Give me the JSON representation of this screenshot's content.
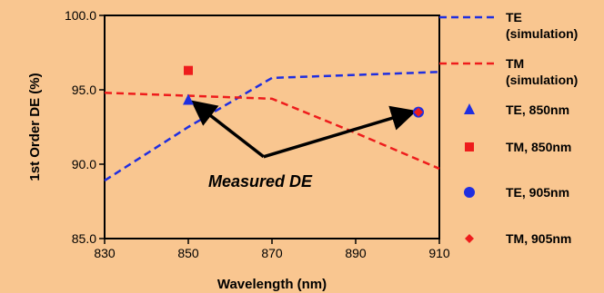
{
  "chart_data": {
    "type": "line",
    "xlabel": "Wavelength (nm)",
    "ylabel": "1st Order DE (%)",
    "xlim": [
      830,
      910
    ],
    "ylim": [
      85,
      100
    ],
    "x_ticks": [
      "830",
      "850",
      "870",
      "890",
      "910"
    ],
    "y_ticks": [
      "85.0",
      "90.0",
      "95.0",
      "100.0"
    ],
    "grid": false,
    "legend_position": "right",
    "series": [
      {
        "name": "TE (simulation)",
        "legend_lines": [
          "TE",
          "(simulation)"
        ],
        "kind": "line",
        "style": "dashed",
        "color": "#1f2ee0",
        "x": [
          830,
          850,
          870,
          890,
          910
        ],
        "y": [
          88.9,
          92.5,
          95.8,
          96.0,
          96.2
        ]
      },
      {
        "name": "TM (simulation)",
        "legend_lines": [
          "TM",
          "(simulation)"
        ],
        "kind": "line",
        "style": "dashed",
        "color": "#ee1c1c",
        "x": [
          830,
          850,
          870,
          890,
          910
        ],
        "y": [
          94.8,
          94.6,
          94.4,
          92.1,
          89.7
        ]
      },
      {
        "name": "TE, 850nm",
        "legend_lines": [
          "TE, 850nm"
        ],
        "kind": "marker",
        "marker": "triangle",
        "color": "#1f2ee0",
        "x": [
          850
        ],
        "y": [
          94.3
        ]
      },
      {
        "name": "TM, 850nm",
        "legend_lines": [
          "TM, 850nm"
        ],
        "kind": "marker",
        "marker": "square",
        "color": "#ee1c1c",
        "x": [
          850
        ],
        "y": [
          96.3
        ]
      },
      {
        "name": "TE, 905nm",
        "legend_lines": [
          "TE, 905nm"
        ],
        "kind": "marker",
        "marker": "circle",
        "color": "#1f2ee0",
        "x": [
          905
        ],
        "y": [
          93.5
        ]
      },
      {
        "name": "TM, 905nm",
        "legend_lines": [
          "TM, 905nm"
        ],
        "kind": "marker",
        "marker": "diamond",
        "color": "#ee1c1c",
        "x": [
          905
        ],
        "y": [
          93.5
        ]
      }
    ],
    "annotations": [
      {
        "text": "Measured DE",
        "arrow_origin": [
          868,
          90.5
        ],
        "arrow_targets": [
          [
            851.5,
            94.1
          ],
          [
            903.5,
            93.5
          ]
        ]
      }
    ]
  }
}
